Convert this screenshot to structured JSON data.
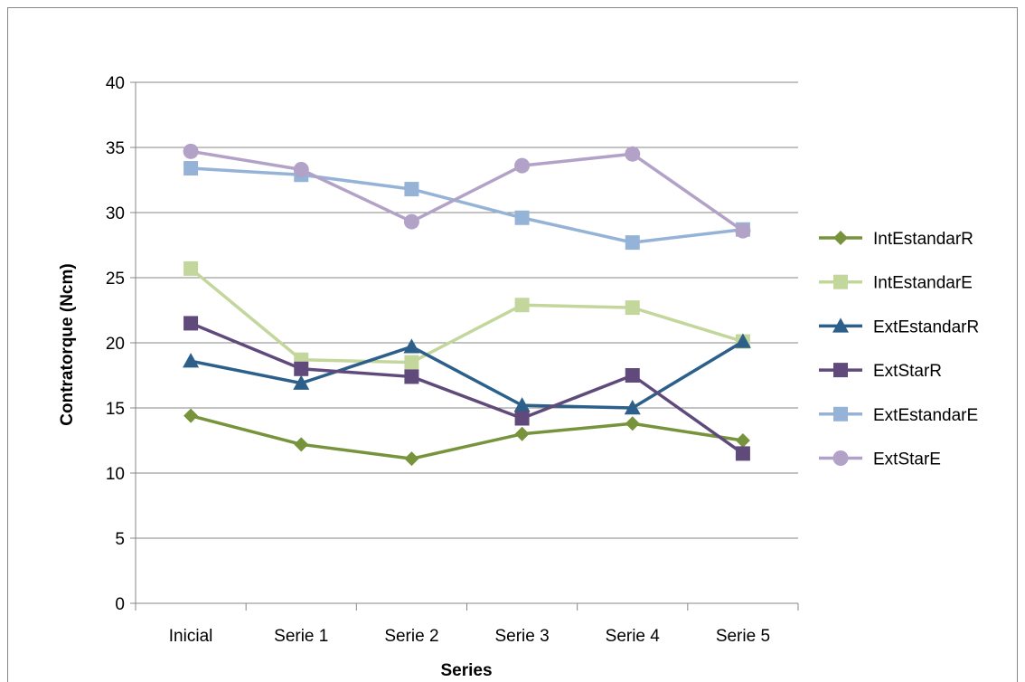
{
  "chart_data": {
    "type": "line",
    "xlabel": "Series",
    "ylabel": "Contratorque (Ncm)",
    "ylim": [
      0,
      40
    ],
    "yticks": [
      0,
      5,
      10,
      15,
      20,
      25,
      30,
      35,
      40
    ],
    "grid": true,
    "legend_position": "right",
    "categories": [
      "Inicial",
      "Serie 1",
      "Serie 2",
      "Serie 3",
      "Serie 4",
      "Serie 5"
    ],
    "series": [
      {
        "name": "IntEstandarR",
        "color": "#77933C",
        "marker": "diamond",
        "values": [
          14.4,
          12.2,
          11.1,
          13.0,
          13.8,
          12.5
        ]
      },
      {
        "name": "IntEstandarE",
        "color": "#C3D69B",
        "marker": "square",
        "values": [
          25.7,
          18.7,
          18.5,
          22.9,
          22.7,
          20.1
        ]
      },
      {
        "name": "ExtEstandarR",
        "color": "#2C5F8A",
        "marker": "triangle",
        "values": [
          18.6,
          16.9,
          19.7,
          15.2,
          15.0,
          20.1
        ]
      },
      {
        "name": "ExtStarR",
        "color": "#604A7B",
        "marker": "square",
        "values": [
          21.5,
          18.0,
          17.4,
          14.2,
          17.5,
          11.5
        ]
      },
      {
        "name": "ExtEstandarE",
        "color": "#95B3D7",
        "marker": "square",
        "values": [
          33.4,
          32.9,
          31.8,
          29.6,
          27.7,
          28.7
        ]
      },
      {
        "name": "ExtStarE",
        "color": "#B3A2C7",
        "marker": "circle",
        "values": [
          34.7,
          33.3,
          29.3,
          33.6,
          34.5,
          28.6
        ]
      }
    ]
  }
}
